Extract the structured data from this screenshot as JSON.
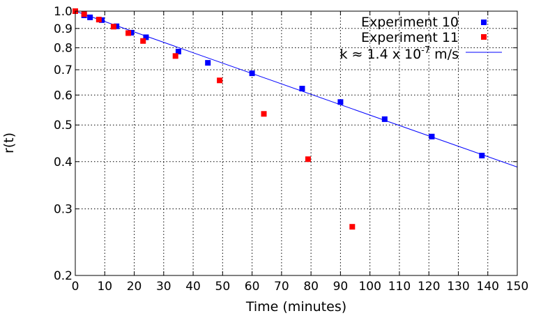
{
  "chart_data": {
    "type": "scatter",
    "xlabel": "Time (minutes)",
    "ylabel": "r(t)",
    "xlim": [
      0,
      150
    ],
    "ylim": [
      0.2,
      1.0
    ],
    "yscale": "log",
    "grid": true,
    "legend_position": "top-right",
    "x_ticks": [
      "0",
      "10",
      "20",
      "30",
      "40",
      "50",
      "60",
      "70",
      "80",
      "90",
      "100",
      "110",
      "120",
      "130",
      "140",
      "150"
    ],
    "y_ticks": [
      {
        "value": 0.2,
        "label": "0.2"
      },
      {
        "value": 0.3,
        "label": "0.3"
      },
      {
        "value": 0.4,
        "label": "0.4"
      },
      {
        "value": 0.5,
        "label": "0.5"
      },
      {
        "value": 0.6,
        "label": "0.6"
      },
      {
        "value": 0.7,
        "label": "0.7"
      },
      {
        "value": 0.8,
        "label": "0.8"
      },
      {
        "value": 0.9,
        "label": "0.9"
      },
      {
        "value": 1.0,
        "label": "1.0"
      }
    ],
    "series": [
      {
        "name": "Experiment 10",
        "kind": "scatter",
        "color": "#0000ff",
        "x": [
          0,
          3,
          5,
          9,
          14,
          19,
          24,
          35,
          45,
          60,
          77,
          90,
          105,
          121,
          138
        ],
        "y": [
          1.0,
          0.975,
          0.963,
          0.947,
          0.912,
          0.877,
          0.853,
          0.782,
          0.73,
          0.685,
          0.624,
          0.575,
          0.518,
          0.466,
          0.415
        ]
      },
      {
        "name": "Experiment 11",
        "kind": "scatter",
        "color": "#ff0000",
        "x": [
          0,
          3,
          8,
          13,
          18,
          23,
          34,
          49,
          64,
          79,
          94
        ],
        "y": [
          1.0,
          0.982,
          0.95,
          0.91,
          0.875,
          0.834,
          0.761,
          0.656,
          0.535,
          0.406,
          0.269
        ]
      },
      {
        "name": "k ≈ 1.4 x 10",
        "name_sup": "-7",
        "name_suffix": " m/s",
        "kind": "line",
        "color": "#0000ff",
        "x": [
          0,
          150
        ],
        "y": [
          1.0,
          0.387
        ]
      }
    ]
  }
}
